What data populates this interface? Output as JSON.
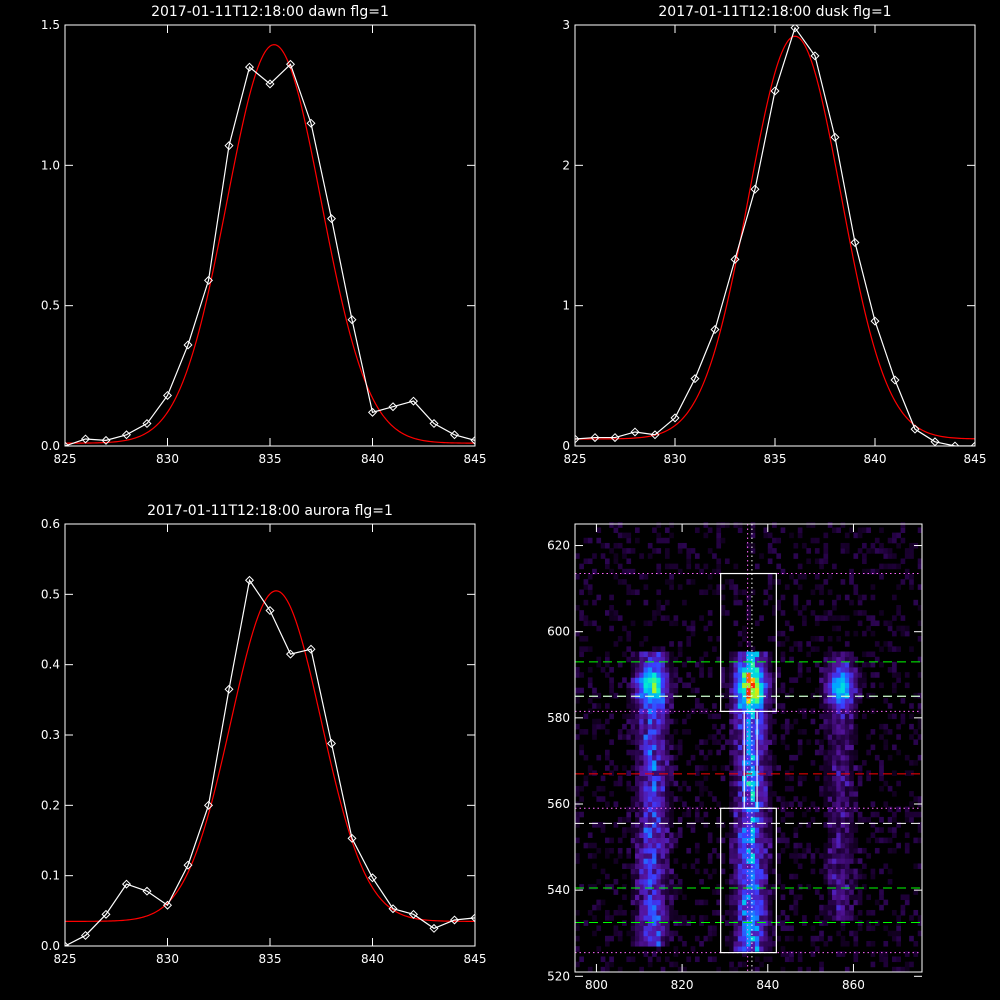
{
  "colors": {
    "background": "#000000",
    "axes": "#ffffff",
    "data": "#ffffff",
    "fit": "#ff0000",
    "green": "#00ff00",
    "magenta": "#ff66ff"
  },
  "chart_data": [
    {
      "type": "line",
      "title": "2017-01-11T12:18:00 dawn flg=1",
      "xlim": [
        825,
        845
      ],
      "ylim": [
        0,
        1.5
      ],
      "xticks": [
        825,
        830,
        835,
        840,
        845
      ],
      "xtick_labels": [
        "825",
        "830",
        "835",
        "840",
        "845"
      ],
      "yticks": [
        0,
        0.5,
        1.0,
        1.5
      ],
      "ytick_labels": [
        "0.0",
        "0.5",
        "1.0",
        "1.5"
      ],
      "series": [
        {
          "marker": "diamond",
          "x": [
            825,
            826,
            827,
            828,
            829,
            830,
            831,
            832,
            833,
            834,
            835,
            836,
            837,
            838,
            839,
            840,
            841,
            842,
            843,
            844,
            845
          ],
          "y": [
            0.0,
            0.025,
            0.02,
            0.04,
            0.08,
            0.18,
            0.36,
            0.59,
            1.07,
            1.35,
            1.29,
            1.36,
            1.15,
            0.81,
            0.45,
            0.12,
            0.14,
            0.16,
            0.08,
            0.04,
            0.02
          ]
        },
        {
          "fit": "gaussian",
          "amplitude": 1.42,
          "center": 835.2,
          "sigma": 2.3,
          "baseline": 0.01
        }
      ]
    },
    {
      "type": "line",
      "title": "2017-01-11T12:18:00 dusk flg=1",
      "xlim": [
        825,
        845
      ],
      "ylim": [
        0,
        3
      ],
      "xticks": [
        825,
        830,
        835,
        840,
        845
      ],
      "xtick_labels": [
        "825",
        "830",
        "835",
        "840",
        "845"
      ],
      "yticks": [
        0,
        1,
        2,
        3
      ],
      "ytick_labels": [
        "0",
        "1",
        "2",
        "3"
      ],
      "series": [
        {
          "marker": "diamond",
          "x": [
            825,
            826,
            827,
            828,
            829,
            830,
            831,
            832,
            833,
            834,
            835,
            836,
            837,
            838,
            839,
            840,
            841,
            842,
            843,
            844,
            845
          ],
          "y": [
            0.05,
            0.06,
            0.06,
            0.1,
            0.08,
            0.2,
            0.48,
            0.83,
            1.33,
            1.83,
            2.53,
            2.98,
            2.78,
            2.2,
            1.45,
            0.89,
            0.47,
            0.12,
            0.03,
            0.0,
            0.0
          ]
        },
        {
          "fit": "gaussian",
          "amplitude": 2.87,
          "center": 836.0,
          "sigma": 2.3,
          "baseline": 0.05
        }
      ]
    },
    {
      "type": "line",
      "title": "2017-01-11T12:18:00 aurora flg=1",
      "xlim": [
        825,
        845
      ],
      "ylim": [
        0,
        0.6
      ],
      "xticks": [
        825,
        830,
        835,
        840,
        845
      ],
      "xtick_labels": [
        "825",
        "830",
        "835",
        "840",
        "845"
      ],
      "yticks": [
        0,
        0.1,
        0.2,
        0.3,
        0.4,
        0.5,
        0.6
      ],
      "ytick_labels": [
        "0.0",
        "0.1",
        "0.2",
        "0.3",
        "0.4",
        "0.5",
        "0.6"
      ],
      "series": [
        {
          "marker": "diamond",
          "x": [
            825,
            826,
            827,
            828,
            829,
            830,
            831,
            832,
            833,
            834,
            835,
            836,
            837,
            838,
            839,
            840,
            841,
            842,
            843,
            844,
            845
          ],
          "y": [
            0.0,
            0.015,
            0.045,
            0.088,
            0.078,
            0.058,
            0.115,
            0.2,
            0.365,
            0.52,
            0.477,
            0.415,
            0.422,
            0.288,
            0.153,
            0.097,
            0.053,
            0.045,
            0.025,
            0.037,
            0.04
          ]
        },
        {
          "fit": "gaussian",
          "amplitude": 0.47,
          "center": 835.3,
          "sigma": 2.2,
          "baseline": 0.035
        }
      ]
    },
    {
      "type": "heatmap",
      "title": "",
      "xlim": [
        795,
        876
      ],
      "ylim": [
        521,
        625
      ],
      "xticks": [
        800,
        820,
        840,
        860
      ],
      "xtick_labels": [
        "800",
        "820",
        "840",
        "860"
      ],
      "yticks": [
        520,
        540,
        560,
        580,
        600,
        620
      ],
      "ytick_labels": [
        "520",
        "540",
        "560",
        "580",
        "600",
        "620"
      ],
      "emission_bands": [
        {
          "x_center": 813,
          "x_width": 2.5,
          "y_range": [
            527,
            595
          ],
          "peak_y": 587,
          "peak": 0.7,
          "base": 0.32
        },
        {
          "x_center": 836,
          "x_width": 2.4,
          "y_range": [
            526,
            596
          ],
          "peak_y": 587,
          "peak": 1.0,
          "base": 0.45
        },
        {
          "x_center": 857,
          "x_width": 2.3,
          "y_range": [
            533,
            595
          ],
          "peak_y": 587,
          "peak": 0.6,
          "base": 0.16
        }
      ],
      "boxes": [
        {
          "x": [
            829,
            842
          ],
          "y": [
            581.5,
            613.5
          ]
        },
        {
          "x": [
            834.5,
            837.5
          ],
          "y": [
            559,
            581.5
          ]
        },
        {
          "x": [
            829,
            842
          ],
          "y": [
            525.5,
            559
          ]
        }
      ],
      "hlines": [
        {
          "y": 613.5,
          "style": "dotted",
          "color": "#ff66ff"
        },
        {
          "y": 593,
          "style": "dashed",
          "color": "#00ff00"
        },
        {
          "y": 585,
          "style": "dashed",
          "color": "#00ff00"
        },
        {
          "y": 585,
          "style": "dashed",
          "color": "#ffffff"
        },
        {
          "y": 581.5,
          "style": "dotted",
          "color": "#ff66ff"
        },
        {
          "y": 567,
          "style": "dashed",
          "color": "#ff0000"
        },
        {
          "y": 559,
          "style": "dotted",
          "color": "#ff66ff"
        },
        {
          "y": 555.5,
          "style": "dashed",
          "color": "#ffffff"
        },
        {
          "y": 540.5,
          "style": "dashed",
          "color": "#00ff00"
        },
        {
          "y": 532.5,
          "style": "dashed",
          "color": "#00ff00"
        },
        {
          "y": 525.5,
          "style": "dotted",
          "color": "#ff66ff"
        }
      ],
      "vlines": [
        {
          "x": 835.3,
          "style": "dotted",
          "color": "#ff66ff"
        },
        {
          "x": 836.3,
          "style": "dotted",
          "color": "#ffffff"
        }
      ]
    }
  ]
}
